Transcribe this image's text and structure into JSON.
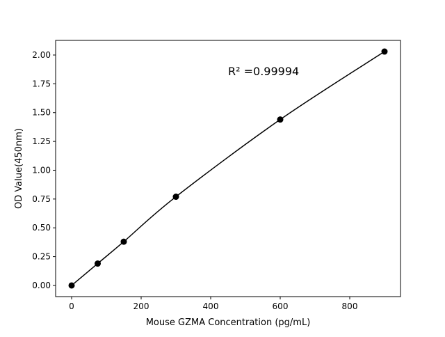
{
  "chart_data": {
    "type": "line",
    "title": "",
    "xlabel": "Mouse GZMA Concentration (pg/mL)",
    "ylabel": "OD Value(450nm)",
    "annotation": "R² =0.99994",
    "x": [
      0,
      75,
      150,
      300,
      600,
      900
    ],
    "series": [
      {
        "values": [
          0.0,
          0.19,
          0.38,
          0.77,
          1.44,
          2.03
        ],
        "color": "#000000",
        "marker": "circle"
      }
    ],
    "xlim": [
      -46,
      946
    ],
    "ylim": [
      -0.097,
      2.127
    ],
    "xticks": [
      0,
      200,
      400,
      600,
      800
    ],
    "xtick_labels": [
      "0",
      "200",
      "400",
      "600",
      "800"
    ],
    "yticks": [
      0,
      0.25,
      0.5,
      0.75,
      1.0,
      1.25,
      1.5,
      1.75,
      2.0
    ],
    "ytick_labels": [
      "0.00",
      "0.25",
      "0.50",
      "0.75",
      "1.00",
      "1.25",
      "1.50",
      "1.75",
      "2.00"
    ],
    "grid": false
  }
}
